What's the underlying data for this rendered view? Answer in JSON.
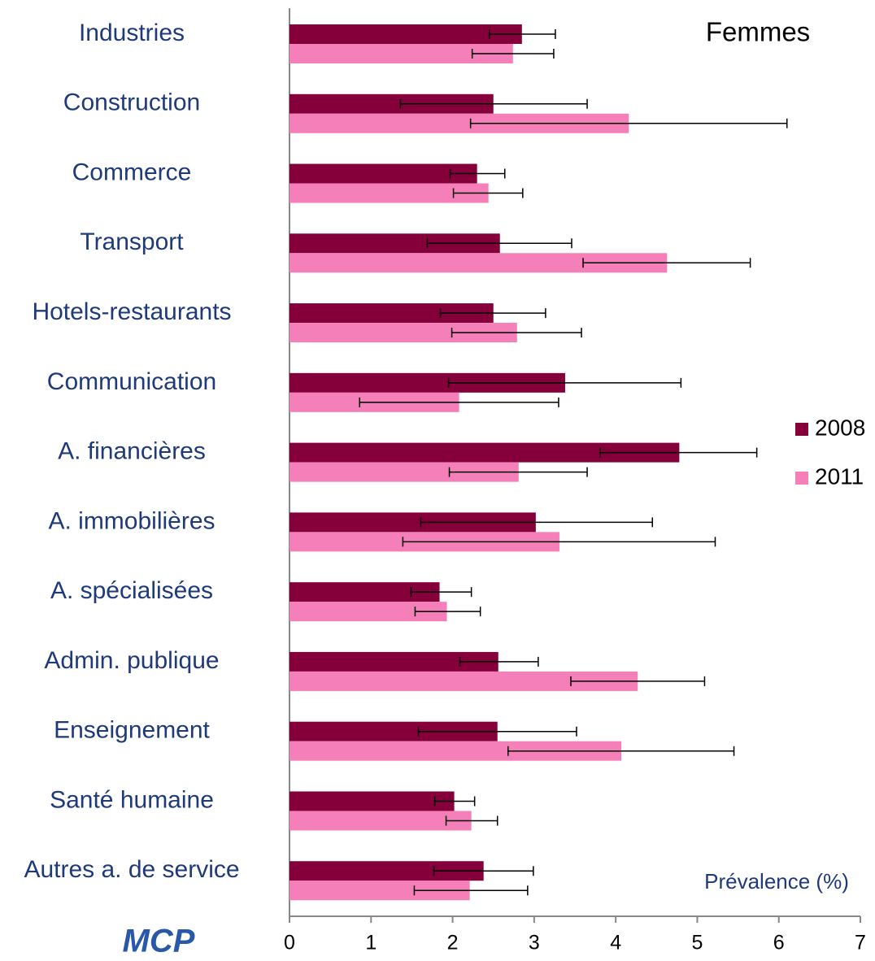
{
  "chart_data": {
    "type": "bar",
    "orientation": "horizontal",
    "title": "Femmes",
    "x_label": "Prévalence (%)",
    "logo": "MCP",
    "categories": [
      "Industries",
      "Construction",
      "Commerce",
      "Transport",
      "Hotels-restaurants",
      "Communication",
      "A. financières",
      "A. immobilières",
      "A. spécialisées",
      "Admin. publique",
      "Enseignement",
      "Santé humaine",
      "Autres a. de service"
    ],
    "series": [
      {
        "name": "2008",
        "color": "#85003a",
        "values": [
          2.85,
          2.5,
          2.3,
          2.58,
          2.5,
          3.38,
          4.78,
          3.02,
          1.84,
          2.56,
          2.55,
          2.02,
          2.38
        ],
        "lower": [
          2.45,
          1.36,
          1.97,
          1.69,
          1.85,
          1.95,
          3.81,
          1.61,
          1.49,
          2.09,
          1.58,
          1.78,
          1.77
        ],
        "upper": [
          3.26,
          3.65,
          2.64,
          3.46,
          3.14,
          4.8,
          5.73,
          4.45,
          2.23,
          3.05,
          3.52,
          2.27,
          2.99
        ]
      },
      {
        "name": "2011",
        "color": "#f57fb9",
        "values": [
          2.74,
          4.16,
          2.44,
          4.63,
          2.79,
          2.08,
          2.81,
          3.31,
          1.93,
          4.27,
          4.07,
          2.23,
          2.21
        ],
        "lower": [
          2.24,
          2.22,
          2.01,
          3.6,
          1.99,
          0.86,
          1.96,
          1.39,
          1.54,
          3.45,
          2.68,
          1.92,
          1.53
        ],
        "upper": [
          3.24,
          6.1,
          2.86,
          5.65,
          3.58,
          3.3,
          3.65,
          5.22,
          2.34,
          5.09,
          5.45,
          2.55,
          2.92
        ]
      }
    ],
    "xlim": [
      0,
      7
    ],
    "xticks": [
      0,
      1,
      2,
      3,
      4,
      5,
      6,
      7
    ],
    "legend": "right"
  }
}
